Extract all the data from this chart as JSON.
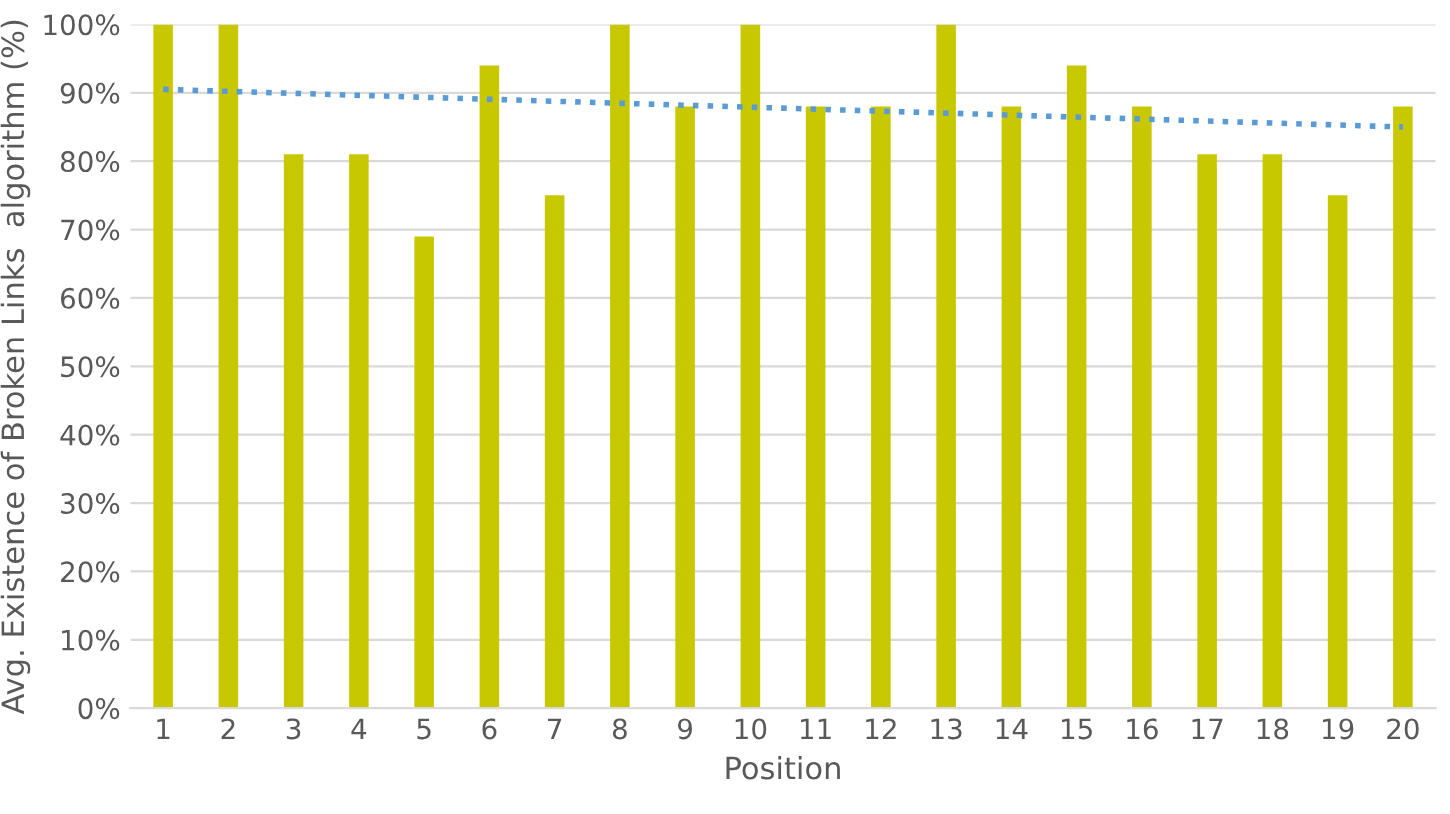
{
  "chart_data": {
    "type": "bar",
    "xlabel": "Position",
    "ylabel": "Avg. Existence of Broken Links  algorithm (%)",
    "x": [
      1,
      2,
      3,
      4,
      5,
      6,
      7,
      8,
      9,
      10,
      11,
      12,
      13,
      14,
      15,
      16,
      17,
      18,
      19,
      20
    ],
    "xlim": [
      0.5,
      20.5
    ],
    "xticks": [
      1,
      2,
      3,
      4,
      5,
      6,
      7,
      8,
      9,
      10,
      11,
      12,
      13,
      14,
      15,
      16,
      17,
      18,
      19,
      20
    ],
    "series": [
      {
        "color": "#c8c800",
        "values": [
          100,
          100,
          81,
          81,
          69,
          94,
          75,
          100,
          88,
          100,
          88,
          88,
          100,
          88,
          94,
          88,
          81,
          81,
          75,
          88
        ]
      },
      {
        "type": "line",
        "color": "#5b9bd5",
        "line_style": "dotted",
        "x": [
          1,
          20
        ],
        "values": [
          90.5,
          85
        ]
      }
    ],
    "ylim": [
      0,
      100
    ],
    "yticks": [
      {
        "value": 0,
        "label": "0%"
      },
      {
        "value": 10,
        "label": "10%"
      },
      {
        "value": 20,
        "label": "20%"
      },
      {
        "value": 30,
        "label": "30%"
      },
      {
        "value": 40,
        "label": "40%"
      },
      {
        "value": 50,
        "label": "50%"
      },
      {
        "value": 60,
        "label": "60%"
      },
      {
        "value": 70,
        "label": "70%"
      },
      {
        "value": 80,
        "label": "80%"
      },
      {
        "value": 90,
        "label": "90%"
      },
      {
        "value": 100,
        "label": "100%"
      }
    ],
    "grid": "y"
  }
}
